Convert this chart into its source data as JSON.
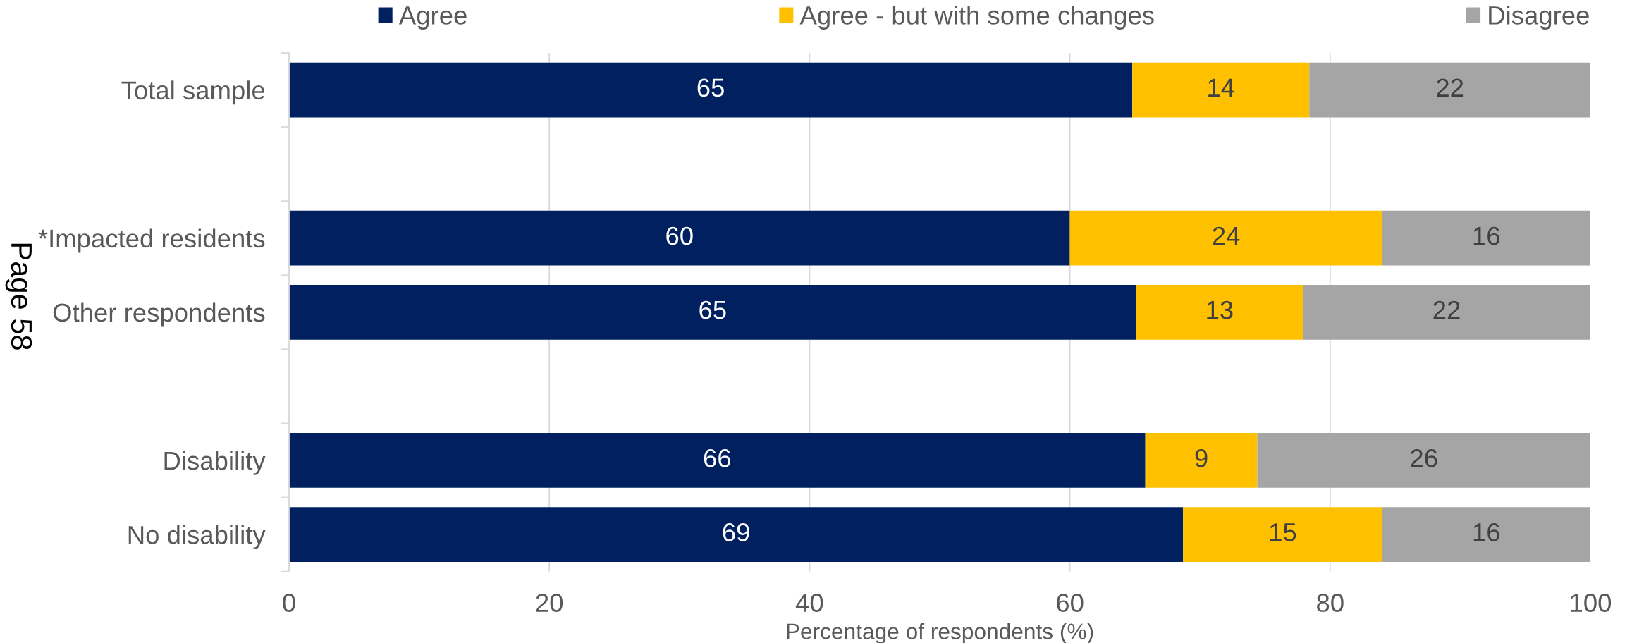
{
  "chart_data": {
    "type": "bar",
    "orientation": "horizontal",
    "stacked": true,
    "categories": [
      "Total sample",
      null,
      "*Impacted residents",
      "Other respondents",
      null,
      "Disability",
      "No disability"
    ],
    "series": [
      {
        "name": "Agree",
        "color": "#002060",
        "values": [
          64.8,
          null,
          60.0,
          65.1,
          null,
          65.8,
          68.7
        ],
        "value_labels": [
          "65",
          null,
          "60",
          "65",
          null,
          "66",
          "69"
        ]
      },
      {
        "name": "Agree - but with some changes",
        "color": "#ffc000",
        "values": [
          13.6,
          null,
          24.0,
          12.8,
          null,
          8.6,
          15.3
        ],
        "value_labels": [
          "14",
          null,
          "24",
          "13",
          null,
          "9",
          "15"
        ]
      },
      {
        "name": "Disagree",
        "color": "#a5a5a5",
        "values": [
          21.6,
          null,
          16.0,
          22.1,
          null,
          25.6,
          16.0
        ],
        "value_labels": [
          "22",
          null,
          "16",
          "22",
          null,
          "26",
          "16"
        ]
      }
    ],
    "xlim": [
      0,
      100
    ],
    "xticks": [
      0,
      20,
      40,
      60,
      80,
      100
    ],
    "xlabel": "Percentage of respondents (%)",
    "grid": "x",
    "legend": "top",
    "annotations": [
      "Page 58"
    ]
  }
}
